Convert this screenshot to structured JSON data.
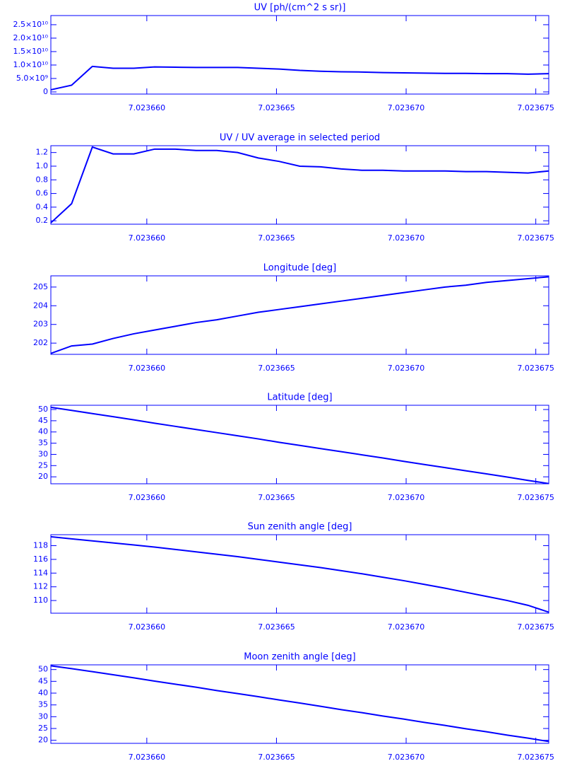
{
  "chart_data": [
    {
      "type": "line",
      "title": "UV [ph/(cm^2 s sr)]",
      "color": "#0000ff",
      "x": [
        7.0236563,
        7.0236571,
        7.0236579,
        7.0236587,
        7.0236595,
        7.0236603,
        7.0236611,
        7.0236619,
        7.0236627,
        7.0236635,
        7.0236643,
        7.0236651,
        7.0236659,
        7.0236667,
        7.0236675,
        7.0236683,
        7.0236691,
        7.0236699,
        7.0236707,
        7.0236715,
        7.0236723,
        7.0236731,
        7.0236739,
        7.0236747,
        7.0236755
      ],
      "values": [
        800000000,
        2500000000,
        9500000000,
        8800000000,
        8800000000,
        9300000000,
        9200000000,
        9100000000,
        9100000000,
        9100000000,
        8800000000,
        8500000000,
        8000000000,
        7700000000,
        7500000000,
        7400000000,
        7200000000,
        7100000000,
        7000000000,
        6900000000,
        6900000000,
        6800000000,
        6800000000,
        6600000000,
        6800000000
      ],
      "xlim": [
        7.0236563,
        7.0236755
      ],
      "xticks": [
        {
          "value": 7.02366,
          "label": "7.023660"
        },
        {
          "value": 7.023665,
          "label": "7.023665"
        },
        {
          "value": 7.02367,
          "label": "7.023670"
        },
        {
          "value": 7.023675,
          "label": "7.023675"
        }
      ],
      "ylim": [
        -800000000,
        28400000000
      ],
      "yticks": [
        0,
        {
          "value": 5000000000,
          "label": "5.0×10⁹"
        },
        {
          "value": 10000000000,
          "label": "1.0×10¹⁰"
        },
        {
          "value": 15000000000,
          "label": "1.5×10¹⁰"
        },
        {
          "value": 20000000000,
          "label": "2.0×10¹⁰"
        },
        {
          "value": 25000000000,
          "label": "2.5×10¹⁰"
        }
      ]
    },
    {
      "type": "line",
      "title": "UV / UV average in selected period",
      "color": "#0000ff",
      "x": [
        7.0236563,
        7.0236571,
        7.0236579,
        7.0236587,
        7.0236595,
        7.0236603,
        7.0236611,
        7.0236619,
        7.0236627,
        7.0236635,
        7.0236643,
        7.0236651,
        7.0236659,
        7.0236667,
        7.0236675,
        7.0236683,
        7.0236691,
        7.0236699,
        7.0236707,
        7.0236715,
        7.0236723,
        7.0236731,
        7.0236739,
        7.0236747,
        7.0236755
      ],
      "values": [
        0.17,
        0.45,
        1.28,
        1.18,
        1.18,
        1.25,
        1.25,
        1.23,
        1.23,
        1.2,
        1.12,
        1.07,
        1.0,
        0.99,
        0.96,
        0.94,
        0.94,
        0.93,
        0.93,
        0.93,
        0.92,
        0.92,
        0.91,
        0.9,
        0.93
      ],
      "xlim": [
        7.0236563,
        7.0236755
      ],
      "xticks": [
        {
          "value": 7.02366,
          "label": "7.023660"
        },
        {
          "value": 7.023665,
          "label": "7.023665"
        },
        {
          "value": 7.02367,
          "label": "7.023670"
        },
        {
          "value": 7.023675,
          "label": "7.023675"
        }
      ],
      "ylim": [
        0.15,
        1.3
      ],
      "yticks": [
        0.2,
        0.4,
        0.6,
        0.8,
        {
          "value": 1,
          "label": "1.0"
        },
        1.2
      ]
    },
    {
      "type": "line",
      "title": "Longitude [deg]",
      "color": "#0000ff",
      "x": [
        7.0236563,
        7.0236571,
        7.0236579,
        7.0236587,
        7.0236595,
        7.0236603,
        7.0236611,
        7.0236619,
        7.0236627,
        7.0236635,
        7.0236643,
        7.0236651,
        7.0236659,
        7.0236667,
        7.0236675,
        7.0236683,
        7.0236691,
        7.0236699,
        7.0236707,
        7.0236715,
        7.0236723,
        7.0236731,
        7.0236739,
        7.0236747,
        7.0236755
      ],
      "values": [
        201.45,
        201.85,
        201.95,
        202.25,
        202.5,
        202.7,
        202.9,
        203.1,
        203.25,
        203.45,
        203.65,
        203.8,
        203.95,
        204.1,
        204.25,
        204.4,
        204.55,
        204.7,
        204.85,
        205.0,
        205.1,
        205.25,
        205.35,
        205.45,
        205.55
      ],
      "xlim": [
        7.0236563,
        7.0236755
      ],
      "xticks": [
        {
          "value": 7.02366,
          "label": "7.023660"
        },
        {
          "value": 7.023665,
          "label": "7.023665"
        },
        {
          "value": 7.02367,
          "label": "7.023670"
        },
        {
          "value": 7.023675,
          "label": "7.023675"
        }
      ],
      "ylim": [
        201.4,
        205.6
      ],
      "yticks": [
        202,
        203,
        204,
        205
      ]
    },
    {
      "type": "line",
      "title": "Latitude [deg]",
      "color": "#0000ff",
      "x": [
        7.0236563,
        7.0236571,
        7.0236579,
        7.0236587,
        7.0236595,
        7.0236603,
        7.0236611,
        7.0236619,
        7.0236627,
        7.0236635,
        7.0236643,
        7.0236651,
        7.0236659,
        7.0236667,
        7.0236675,
        7.0236683,
        7.0236691,
        7.0236699,
        7.0236707,
        7.0236715,
        7.0236723,
        7.0236731,
        7.0236739,
        7.0236747,
        7.0236755
      ],
      "values": [
        51,
        49.6,
        48.2,
        46.8,
        45.4,
        43.9,
        42.5,
        41.1,
        39.7,
        38.3,
        36.9,
        35.4,
        34.0,
        32.6,
        31.2,
        29.8,
        28.4,
        26.9,
        25.5,
        24.1,
        22.7,
        21.3,
        19.9,
        18.4,
        17.0
      ],
      "xlim": [
        7.0236563,
        7.0236755
      ],
      "xticks": [
        {
          "value": 7.02366,
          "label": "7.023660"
        },
        {
          "value": 7.023665,
          "label": "7.023665"
        },
        {
          "value": 7.02367,
          "label": "7.023670"
        },
        {
          "value": 7.023675,
          "label": "7.023675"
        }
      ],
      "ylim": [
        16.9,
        51.9
      ],
      "yticks": [
        20,
        25,
        30,
        35,
        40,
        45,
        50
      ]
    },
    {
      "type": "line",
      "title": "Sun zenith angle [deg]",
      "color": "#0000ff",
      "x": [
        7.0236563,
        7.0236571,
        7.0236579,
        7.0236587,
        7.0236595,
        7.0236603,
        7.0236611,
        7.0236619,
        7.0236627,
        7.0236635,
        7.0236643,
        7.0236651,
        7.0236659,
        7.0236667,
        7.0236675,
        7.0236683,
        7.0236691,
        7.0236699,
        7.0236707,
        7.0236715,
        7.0236723,
        7.0236731,
        7.0236739,
        7.0236747,
        7.0236755
      ],
      "values": [
        119.3,
        119.0,
        118.7,
        118.4,
        118.1,
        117.8,
        117.45,
        117.1,
        116.75,
        116.4,
        116.0,
        115.6,
        115.2,
        114.8,
        114.35,
        113.9,
        113.4,
        112.9,
        112.35,
        111.8,
        111.2,
        110.6,
        110.0,
        109.3,
        108.3
      ],
      "xlim": [
        7.0236563,
        7.0236755
      ],
      "xticks": [
        {
          "value": 7.02366,
          "label": "7.023660"
        },
        {
          "value": 7.023665,
          "label": "7.023665"
        },
        {
          "value": 7.02367,
          "label": "7.023670"
        },
        {
          "value": 7.023675,
          "label": "7.023675"
        }
      ],
      "ylim": [
        108.15,
        119.6
      ],
      "yticks": [
        110,
        112,
        114,
        116,
        118
      ]
    },
    {
      "type": "line",
      "title": "Moon zenith angle [deg]",
      "color": "#0000ff",
      "x": [
        7.0236563,
        7.0236571,
        7.0236579,
        7.0236587,
        7.0236595,
        7.0236603,
        7.0236611,
        7.0236619,
        7.0236627,
        7.0236635,
        7.0236643,
        7.0236651,
        7.0236659,
        7.0236667,
        7.0236675,
        7.0236683,
        7.0236691,
        7.0236699,
        7.0236707,
        7.0236715,
        7.0236723,
        7.0236731,
        7.0236739,
        7.0236747,
        7.0236755
      ],
      "values": [
        51.6,
        50.4,
        49.1,
        47.8,
        46.5,
        45.1,
        43.8,
        42.5,
        41.1,
        39.8,
        38.5,
        37.1,
        35.8,
        34.4,
        33.0,
        31.7,
        30.3,
        29.0,
        27.6,
        26.3,
        24.9,
        23.6,
        22.2,
        20.9,
        19.5
      ],
      "xlim": [
        7.0236563,
        7.0236755
      ],
      "xticks": [
        {
          "value": 7.02366,
          "label": "7.023660"
        },
        {
          "value": 7.023665,
          "label": "7.023665"
        },
        {
          "value": 7.02367,
          "label": "7.023670"
        },
        {
          "value": 7.023675,
          "label": "7.023675"
        }
      ],
      "ylim": [
        18.7,
        52
      ],
      "yticks": [
        20,
        25,
        30,
        35,
        40,
        45,
        50
      ]
    }
  ]
}
